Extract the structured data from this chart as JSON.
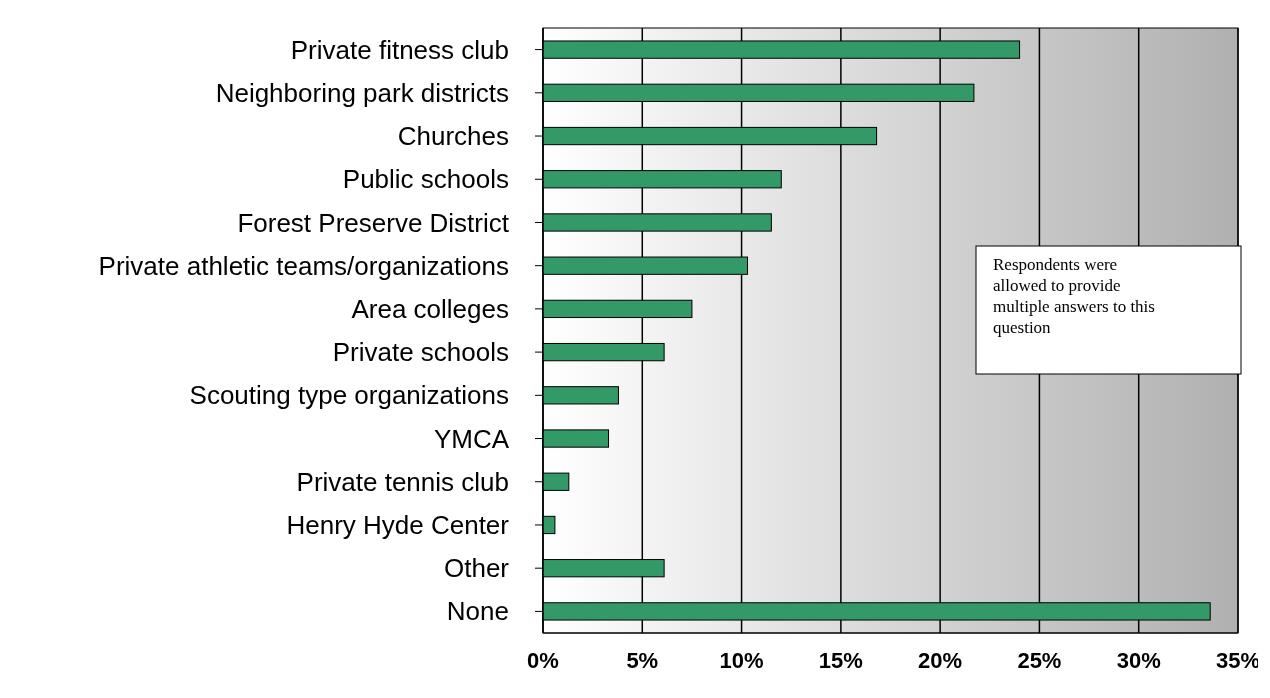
{
  "chart_data": {
    "type": "bar",
    "orientation": "horizontal",
    "categories": [
      "Private fitness club",
      "Neighboring park districts",
      "Churches",
      "Public schools",
      "Forest Preserve District",
      "Private athletic teams/organizations",
      "Area colleges",
      "Private schools",
      "Scouting type organizations",
      "YMCA",
      "Private tennis club",
      "Henry Hyde Center",
      "Other",
      "None"
    ],
    "values": [
      24,
      21.7,
      16.8,
      12,
      11.5,
      10.3,
      7.5,
      6.1,
      3.8,
      3.3,
      1.3,
      0.6,
      6.1,
      33.6
    ],
    "color": "#339966",
    "xlim": [
      0,
      35
    ],
    "xticks": [
      {
        "value": 0,
        "label": "0%"
      },
      {
        "value": 5,
        "label": "5%"
      },
      {
        "value": 10,
        "label": "10%"
      },
      {
        "value": 15,
        "label": "15%"
      },
      {
        "value": 20,
        "label": "20%"
      },
      {
        "value": 25,
        "label": "25%"
      },
      {
        "value": 30,
        "label": "30%"
      },
      {
        "value": 35,
        "label": "35%"
      }
    ],
    "grid": "x",
    "annotations": [
      "Respondents were allowed to provide multiple answers to this question"
    ]
  }
}
